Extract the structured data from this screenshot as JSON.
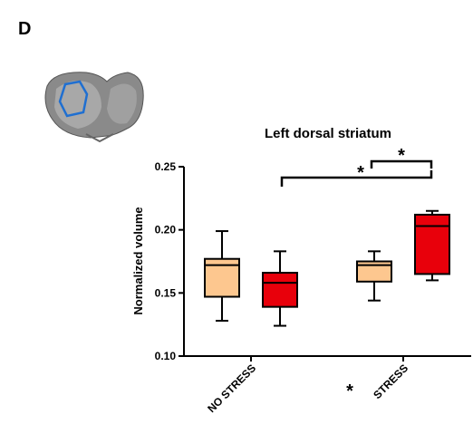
{
  "chart_data": {
    "type": "box",
    "panel_label": "D",
    "title": "Left dorsal striatum",
    "y_label": "Normalized volume",
    "categories": [
      "NO STRESS",
      "STRESS"
    ],
    "series": [
      {
        "color": "#fdc78f",
        "values": [
          {
            "low": 0.128,
            "q1": 0.147,
            "median": 0.172,
            "q3": 0.177,
            "high": 0.199
          },
          {
            "low": 0.144,
            "q1": 0.159,
            "median": 0.172,
            "q3": 0.175,
            "high": 0.183
          }
        ]
      },
      {
        "color": "#e8000b",
        "values": [
          {
            "low": 0.124,
            "q1": 0.139,
            "median": 0.158,
            "q3": 0.166,
            "high": 0.183
          },
          {
            "low": 0.16,
            "q1": 0.165,
            "median": 0.203,
            "q3": 0.212,
            "high": 0.215
          }
        ]
      }
    ],
    "ylim": [
      0.1,
      0.25
    ],
    "yticks": [
      {
        "value": 0.1,
        "label": "0.10"
      },
      0.15,
      {
        "value": 0.2,
        "label": "0.20"
      },
      0.25
    ],
    "annotations": [
      "*",
      "*",
      "*"
    ]
  }
}
